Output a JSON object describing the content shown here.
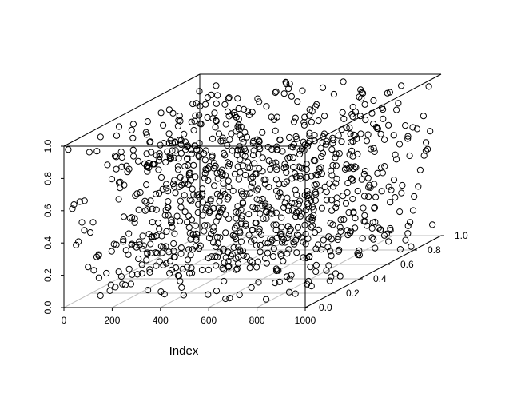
{
  "chart_data": {
    "type": "scatter",
    "title": "",
    "xlabel": "Index",
    "ylabel": "",
    "zlabel": "",
    "xlim": [
      0,
      1000
    ],
    "ylim": [
      0,
      1
    ],
    "zlim": [
      0,
      1
    ],
    "x_ticks": [
      "0",
      "200",
      "400",
      "600",
      "800",
      "1000"
    ],
    "y_ticks": [
      "0.0",
      "0.2",
      "0.4",
      "0.6",
      "0.8",
      "1.0"
    ],
    "z_ticks": [
      "0.0",
      "0.2",
      "0.4",
      "0.6",
      "0.8",
      "1.0"
    ],
    "n_points": 1000,
    "point_style": "open-circle",
    "grid": "bottom-plane",
    "box": true,
    "point_color": "#000000",
    "grid_color": "#bebebe"
  }
}
